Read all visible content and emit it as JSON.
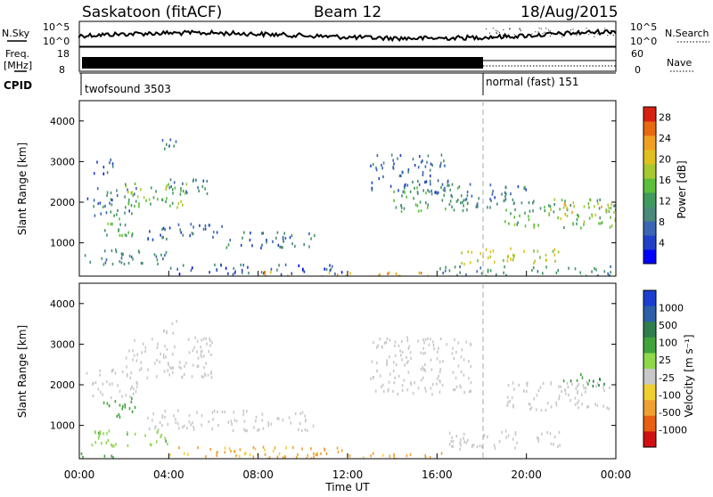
{
  "header": {
    "title": "Saskatoon (fitACF)",
    "beam": "Beam 12",
    "date": "18/Aug/2015"
  },
  "nsky_panel": {
    "left_label": "N.Sky",
    "right_label": "N.Search",
    "left_ticks": [
      "10^5",
      "10^0"
    ],
    "right_ticks": [
      "10^5",
      "10^0"
    ]
  },
  "freq_panel": {
    "left_label_1": "Freq.",
    "left_label_2": "[MHz]",
    "right_label": "Nave",
    "left_ticks": [
      "18",
      "8"
    ],
    "right_ticks": [
      "60",
      "0"
    ]
  },
  "cpid_panel": {
    "label": "CPID",
    "program_1": "twofsound 3503",
    "program_2": "normal (fast) 151"
  },
  "colors": {
    "power_scale": [
      "#0000ff",
      "#2040c8",
      "#3a66b4",
      "#4a8a7a",
      "#3f9a5e",
      "#5bbf3a",
      "#a8c830",
      "#e0c020",
      "#f0a020",
      "#e86a10",
      "#d82010"
    ],
    "velocity_scale": [
      "#1a3fd0",
      "#2c5fa8",
      "#2f7e4e",
      "#3fa43a",
      "#8ed84a",
      "#c8c8c8",
      "#f0d030",
      "#f0a030",
      "#e86010",
      "#d01010"
    ]
  },
  "chart_data": [
    {
      "type": "heatmap",
      "name_shown": "",
      "ylabel": "Slant Range [km]",
      "yticks": [
        "1000",
        "2000",
        "3000",
        "4000"
      ],
      "ylim": [
        180,
        4500
      ],
      "xlim_hours": [
        0,
        24
      ],
      "colorbar_label": "Power [dB]",
      "colorbar_ticks": [
        "4",
        "8",
        "12",
        "16",
        "20",
        "24",
        "28"
      ],
      "colorbar_range": [
        0,
        30
      ],
      "mode_change_hour": 18,
      "patches": [
        {
          "t": [
            0.3,
            2.6
          ],
          "r": [
            1700,
            2400
          ],
          "v": 9
        },
        {
          "t": [
            2.0,
            4.8
          ],
          "r": [
            1800,
            2500
          ],
          "v": 15
        },
        {
          "t": [
            4.0,
            6.0
          ],
          "r": [
            2200,
            2600
          ],
          "v": 9
        },
        {
          "t": [
            1.0,
            2.5
          ],
          "r": [
            1200,
            1700
          ],
          "v": 13
        },
        {
          "t": [
            3.0,
            6.5
          ],
          "r": [
            1100,
            1500
          ],
          "v": 7
        },
        {
          "t": [
            6.5,
            10.5
          ],
          "r": [
            900,
            1300
          ],
          "v": 8
        },
        {
          "t": [
            0.2,
            4.0
          ],
          "r": [
            500,
            900
          ],
          "v": 10
        },
        {
          "t": [
            4.0,
            12.0
          ],
          "r": [
            250,
            500
          ],
          "v": 6
        },
        {
          "t": [
            8.0,
            16.0
          ],
          "r": [
            190,
            320
          ],
          "v": 22
        },
        {
          "t": [
            13.0,
            16.5
          ],
          "r": [
            2200,
            3200
          ],
          "v": 7
        },
        {
          "t": [
            14.0,
            17.5
          ],
          "r": [
            1800,
            2400
          ],
          "v": 12
        },
        {
          "t": [
            16.5,
            20.0
          ],
          "r": [
            1900,
            2500
          ],
          "v": 9
        },
        {
          "t": [
            17.0,
            21.5
          ],
          "r": [
            500,
            900
          ],
          "v": 18
        },
        {
          "t": [
            19.0,
            24.0
          ],
          "r": [
            1400,
            2100
          ],
          "v": 14
        },
        {
          "t": [
            21.5,
            24.0
          ],
          "r": [
            1600,
            2000
          ],
          "v": 20
        },
        {
          "t": [
            16.0,
            24.0
          ],
          "r": [
            190,
            450
          ],
          "v": 10
        },
        {
          "t": [
            0.5,
            1.5
          ],
          "r": [
            2700,
            3100
          ],
          "v": 6
        },
        {
          "t": [
            3.5,
            4.5
          ],
          "r": [
            3300,
            3600
          ],
          "v": 8
        }
      ]
    },
    {
      "type": "heatmap",
      "name_shown": "",
      "ylabel": "Slant Range [km]",
      "yticks": [
        "1000",
        "2000",
        "3000",
        "4000"
      ],
      "ylim": [
        180,
        4500
      ],
      "xlim_hours": [
        0,
        24
      ],
      "xticks": [
        "00:00",
        "04:00",
        "08:00",
        "12:00",
        "16:00",
        "20:00",
        "00:00"
      ],
      "xlabel": "Time UT",
      "colorbar_label": "Velocity [m s⁻¹]",
      "colorbar_ticks": [
        "1000",
        "500",
        "100",
        "25",
        "-25",
        "-100",
        "-500",
        "-1000"
      ],
      "mode_change_hour": 18,
      "patches": [
        {
          "t": [
            0.3,
            2.6
          ],
          "r": [
            1700,
            2400
          ],
          "v": 0
        },
        {
          "t": [
            2.0,
            6.0
          ],
          "r": [
            2200,
            3200
          ],
          "v": 0
        },
        {
          "t": [
            1.0,
            2.5
          ],
          "r": [
            1200,
            1700
          ],
          "v": 150
        },
        {
          "t": [
            3.0,
            10.5
          ],
          "r": [
            900,
            1400
          ],
          "v": 0
        },
        {
          "t": [
            0.2,
            4.0
          ],
          "r": [
            500,
            900
          ],
          "v": 80
        },
        {
          "t": [
            4.0,
            12.0
          ],
          "r": [
            250,
            500
          ],
          "v": -120
        },
        {
          "t": [
            8.0,
            17.0
          ],
          "r": [
            190,
            350
          ],
          "v": -150
        },
        {
          "t": [
            13.0,
            17.5
          ],
          "r": [
            1800,
            3200
          ],
          "v": 0
        },
        {
          "t": [
            16.5,
            21.5
          ],
          "r": [
            450,
            900
          ],
          "v": 0
        },
        {
          "t": [
            19.0,
            24.0
          ],
          "r": [
            1400,
            2100
          ],
          "v": 0
        },
        {
          "t": [
            21.5,
            23.5
          ],
          "r": [
            2000,
            2300
          ],
          "v": 300
        },
        {
          "t": [
            0.0,
            1.5
          ],
          "r": [
            190,
            350
          ],
          "v": 200
        },
        {
          "t": [
            3.5,
            4.5
          ],
          "r": [
            3300,
            3600
          ],
          "v": 0
        }
      ]
    }
  ]
}
